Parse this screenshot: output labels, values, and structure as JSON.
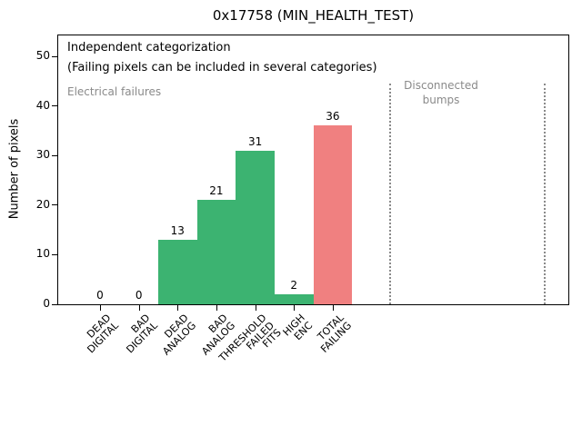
{
  "chart_data": {
    "type": "bar",
    "title": "0x17758 (MIN_HEALTH_TEST)",
    "xlabel": "",
    "ylabel": "Number of pixels",
    "ylim": [
      0,
      54.4
    ],
    "yticks": [
      0,
      10,
      20,
      30,
      40,
      50
    ],
    "grid": false,
    "legend": null,
    "categories": [
      "DEAD\nDIGITAL",
      "BAD\nDIGITAL",
      "DEAD\nANALOG",
      "BAD\nANALOG",
      "THRESHOLD\nFAILED\nFITS",
      "HIGH\nENC",
      "TOTAL\nFAILING"
    ],
    "values": [
      0,
      0,
      13,
      21,
      31,
      2,
      36
    ],
    "bar_colors": [
      "#3cb371",
      "#3cb371",
      "#3cb371",
      "#3cb371",
      "#3cb371",
      "#3cb371",
      "#f08080"
    ],
    "colors": {
      "green_category_bar": "#3cb371",
      "red_total_bar": "#f08080",
      "region_text_gray": "#8a8a8a",
      "axis_black": "#000000"
    },
    "annotations": [
      {
        "text": "Independent categorization",
        "color": "#000000"
      },
      {
        "text": "(Failing pixels can be included in several categories)",
        "color": "#000000"
      },
      {
        "text": "Electrical failures",
        "color": "#8a8a8a"
      },
      {
        "text": "Disconnected\nbumps",
        "color": "#8a8a8a"
      }
    ]
  }
}
